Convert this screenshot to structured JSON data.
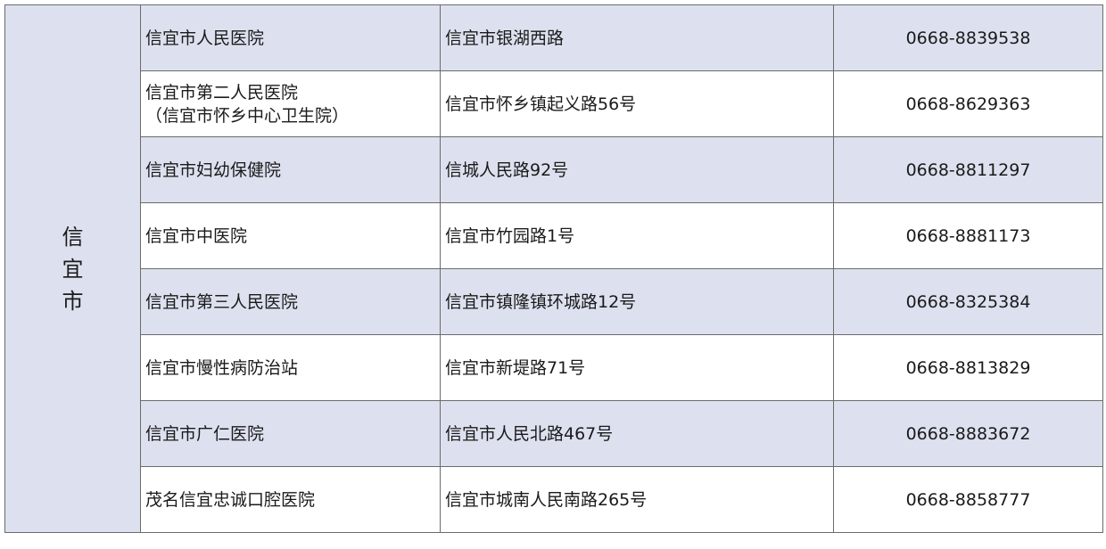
{
  "city": "信宜市",
  "colors": {
    "shade": "#dde1ef",
    "border": "#6b6b6b"
  },
  "rows": [
    {
      "name": "信宜市人民医院",
      "name2": "",
      "address": "信宜市银湖西路",
      "phone": "0668-8839538"
    },
    {
      "name": "信宜市第二人民医院",
      "name2": "（信宜市怀乡中心卫生院）",
      "address": "信宜市怀乡镇起义路56号",
      "phone": "0668-8629363"
    },
    {
      "name": "信宜市妇幼保健院",
      "name2": "",
      "address": "信城人民路92号",
      "phone": "0668-8811297"
    },
    {
      "name": "信宜市中医院",
      "name2": "",
      "address": "信宜市竹园路1号",
      "phone": "0668-8881173"
    },
    {
      "name": "信宜市第三人民医院",
      "name2": "",
      "address": "信宜市镇隆镇环城路12号",
      "phone": "0668-8325384"
    },
    {
      "name": "信宜市慢性病防治站",
      "name2": "",
      "address": "信宜市新堤路71号",
      "phone": "0668-8813829"
    },
    {
      "name": "信宜市广仁医院",
      "name2": "",
      "address": "信宜市人民北路467号",
      "phone": "0668-8883672"
    },
    {
      "name": "茂名信宜忠诚口腔医院",
      "name2": "",
      "address": "信宜市城南人民南路265号",
      "phone": "0668-8858777"
    }
  ]
}
